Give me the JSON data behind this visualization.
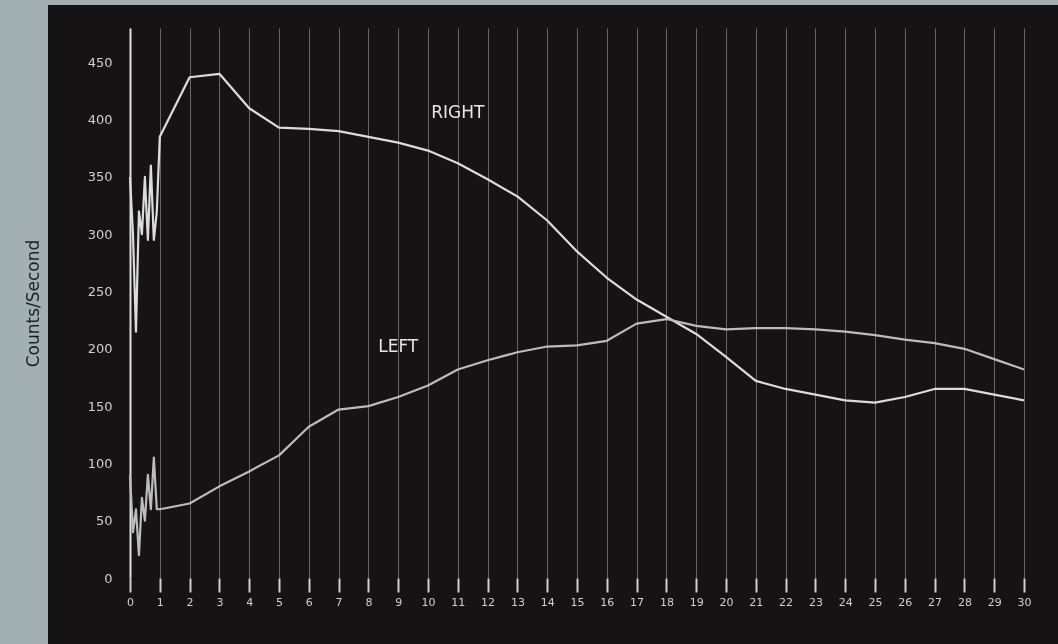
{
  "chart_data": {
    "type": "line",
    "ylabel": "Counts/Second",
    "xlim": [
      0,
      30
    ],
    "ylim": [
      0,
      480
    ],
    "xticks": [
      0,
      1,
      2,
      3,
      4,
      5,
      6,
      7,
      8,
      9,
      10,
      11,
      12,
      13,
      14,
      15,
      16,
      17,
      18,
      19,
      20,
      21,
      22,
      23,
      24,
      25,
      26,
      27,
      28,
      29,
      30
    ],
    "yticks": [
      0,
      50,
      100,
      150,
      200,
      250,
      300,
      350,
      400,
      450
    ],
    "grid": "x",
    "marker": "none",
    "line_style": "solid",
    "series": [
      {
        "name": "RIGHT",
        "color": "#dcdcdc",
        "x": [
          0,
          0.1,
          0.2,
          0.3,
          0.4,
          0.5,
          0.6,
          0.7,
          0.8,
          0.9,
          1,
          2,
          3,
          4,
          5,
          6,
          7,
          8,
          9,
          10,
          11,
          12,
          13,
          14,
          15,
          16,
          17,
          18,
          19,
          20,
          21,
          22,
          23,
          24,
          25,
          26,
          27,
          28,
          29,
          30
        ],
        "values": [
          350,
          300,
          215,
          320,
          300,
          350,
          295,
          360,
          295,
          320,
          385,
          437,
          440,
          410,
          393,
          392,
          390,
          385,
          380,
          373,
          362,
          348,
          333,
          312,
          285,
          262,
          243,
          228,
          213,
          193,
          172,
          165,
          160,
          155,
          153,
          158,
          165,
          165,
          160,
          155
        ]
      },
      {
        "name": "LEFT",
        "color": "#bcbcbc",
        "x": [
          0,
          0.1,
          0.2,
          0.3,
          0.4,
          0.5,
          0.6,
          0.7,
          0.8,
          0.9,
          1,
          2,
          3,
          4,
          5,
          6,
          7,
          8,
          9,
          10,
          11,
          12,
          13,
          14,
          15,
          16,
          17,
          18,
          19,
          20,
          21,
          22,
          23,
          24,
          25,
          26,
          27,
          28,
          29,
          30
        ],
        "values": [
          90,
          40,
          60,
          20,
          70,
          50,
          90,
          60,
          105,
          60,
          60,
          65,
          80,
          93,
          107,
          132,
          147,
          150,
          158,
          168,
          182,
          190,
          197,
          202,
          203,
          207,
          222,
          226,
          220,
          217,
          218,
          218,
          217,
          215,
          212,
          208,
          205,
          200,
          191,
          182
        ]
      }
    ]
  }
}
